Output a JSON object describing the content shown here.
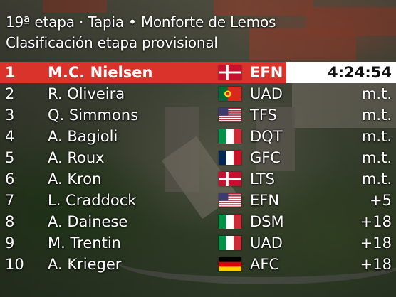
{
  "header": {
    "line1": "19ª etapa · Tapia • Monforte de Lemos",
    "line2": "Clasificación etapa provisional"
  },
  "colors": {
    "leader_bar": "#d9332c",
    "time_box": "#ffffff"
  },
  "results": [
    {
      "pos": "1",
      "name": "M.C. Nielsen",
      "flag": "denmark-flag",
      "team": "EFN",
      "gap": "4:24:54"
    },
    {
      "pos": "2",
      "name": "R. Oliveira",
      "flag": "portugal-flag",
      "team": "UAD",
      "gap": "m.t."
    },
    {
      "pos": "3",
      "name": "Q. Simmons",
      "flag": "usa-flag",
      "team": "TFS",
      "gap": "m.t."
    },
    {
      "pos": "4",
      "name": "A. Bagioli",
      "flag": "italy-flag",
      "team": "DQT",
      "gap": "m.t."
    },
    {
      "pos": "5",
      "name": "A. Roux",
      "flag": "france-flag",
      "team": "GFC",
      "gap": "m.t."
    },
    {
      "pos": "6",
      "name": "A. Kron",
      "flag": "denmark-flag",
      "team": "LTS",
      "gap": "m.t."
    },
    {
      "pos": "7",
      "name": "L. Craddock",
      "flag": "usa-flag",
      "team": "EFN",
      "gap": "+5"
    },
    {
      "pos": "8",
      "name": "A. Dainese",
      "flag": "italy-flag",
      "team": "DSM",
      "gap": "+18"
    },
    {
      "pos": "9",
      "name": "M. Trentin",
      "flag": "italy-flag",
      "team": "UAD",
      "gap": "+18"
    },
    {
      "pos": "10",
      "name": "A. Krieger",
      "flag": "germany-flag",
      "team": "AFC",
      "gap": "+18"
    }
  ]
}
